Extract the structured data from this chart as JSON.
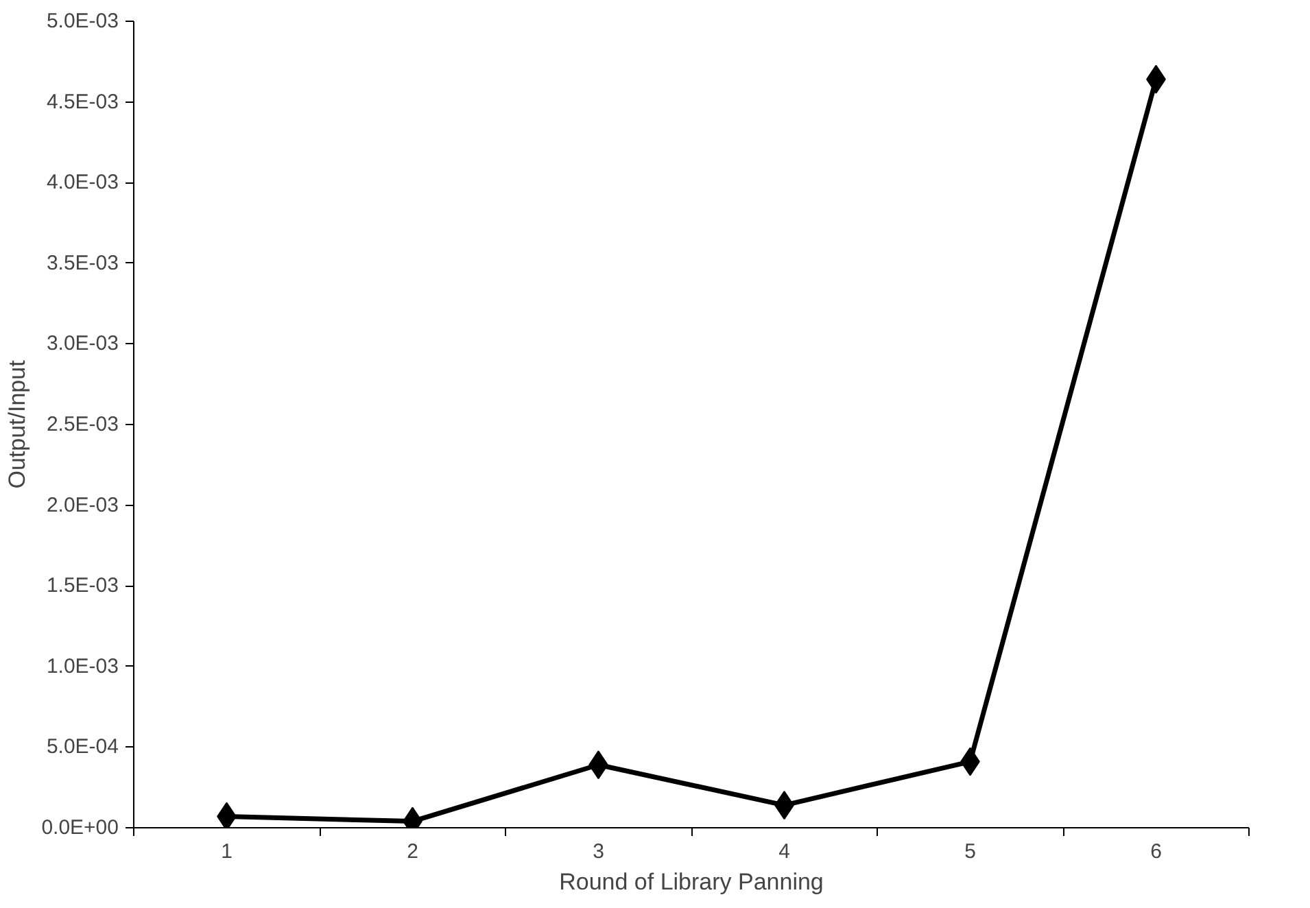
{
  "chart_data": {
    "type": "line",
    "xlabel": "Round of Library Panning",
    "ylabel": "Output/Input",
    "categories": [
      "1",
      "2",
      "3",
      "4",
      "5",
      "6"
    ],
    "series": [
      {
        "color": "#000000",
        "values": [
          7e-05,
          4e-05,
          0.00039,
          0.00014,
          0.00041,
          0.00464
        ]
      }
    ],
    "ylim": [
      0,
      0.005
    ],
    "yticks": [
      {
        "value": 0,
        "label": "0.0E+00"
      },
      {
        "value": 0.0005,
        "label": "5.0E-04"
      },
      {
        "value": 0.001,
        "label": "1.0E-03"
      },
      {
        "value": 0.0015,
        "label": "1.5E-03"
      },
      {
        "value": 0.002,
        "label": "2.0E-03"
      },
      {
        "value": 0.0025,
        "label": "2.5E-03"
      },
      {
        "value": 0.003,
        "label": "3.0E-03"
      },
      {
        "value": 0.0035,
        "label": "3.5E-03"
      },
      {
        "value": 0.004,
        "label": "4.0E-03"
      },
      {
        "value": 0.0045,
        "label": "4.5E-03"
      },
      {
        "value": 0.005,
        "label": "5.0E-03"
      }
    ],
    "grid": false,
    "marker": "diamond",
    "line_style": "solid"
  }
}
